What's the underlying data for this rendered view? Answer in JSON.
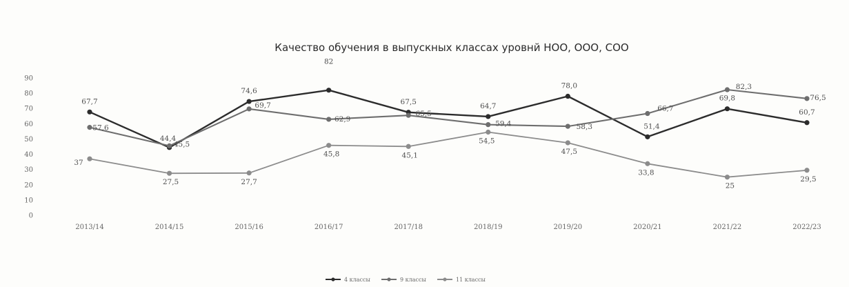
{
  "chart_data": {
    "type": "line",
    "title": "Качество обучения в выпускных классах уровнй НОО, ООО, СОО",
    "categories": [
      "2013/14",
      "2014/15",
      "2015/16",
      "2016/17",
      "2017/18",
      "2018/19",
      "2019/20",
      "2020/21",
      "2021/22",
      "2022/23"
    ],
    "y_ticks": [
      "0",
      "10",
      "20",
      "30",
      "40",
      "50",
      "60",
      "70",
      "80",
      "90"
    ],
    "ylim": [
      0,
      90
    ],
    "grid": false,
    "legend_position": "bottom",
    "series": [
      {
        "name": "4 классы",
        "color": "#2c2c2c",
        "values": [
          67.7,
          44.4,
          74.6,
          82,
          67.5,
          64.7,
          78.0,
          51.4,
          69.8,
          60.7
        ],
        "labels": [
          "67,7",
          "44,4",
          "74,6",
          "82",
          "67,5",
          "64,7",
          "78,0",
          "51,4",
          "69,8",
          "60,7"
        ]
      },
      {
        "name": "9 классы",
        "color": "#6e6e6e",
        "values": [
          57.6,
          45.5,
          69.7,
          62.9,
          65.5,
          59.4,
          58.3,
          66.7,
          82.3,
          76.5
        ],
        "labels": [
          "57,6",
          "45,5",
          "69,7",
          "62,9",
          "65,5",
          "59,4",
          "58,3",
          "66,7",
          "82,3",
          "76,5"
        ]
      },
      {
        "name": "11 классы",
        "color": "#8c8c8c",
        "values": [
          37,
          27.5,
          27.7,
          45.8,
          45.1,
          54.5,
          47.5,
          33.8,
          25,
          29.5
        ],
        "labels": [
          "37",
          "27,5",
          "27,7",
          "45,8",
          "45,1",
          "54,5",
          "47,5",
          "33,8",
          "25",
          "29,5"
        ]
      }
    ]
  }
}
